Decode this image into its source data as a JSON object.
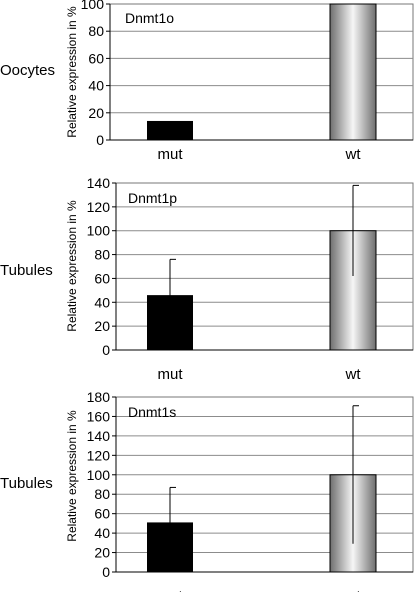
{
  "chart_data": [
    {
      "type": "bar",
      "row_label": "Oocytes",
      "title": "Dnmt1o",
      "ylabel": "Relative expression in %",
      "categories": [
        "mut",
        "wt"
      ],
      "values": [
        14,
        100
      ],
      "errors": [
        null,
        null
      ],
      "ylim": [
        0,
        100
      ],
      "yticks": [
        0,
        20,
        40,
        60,
        80,
        100
      ],
      "grid": true,
      "bar_styles": [
        "solid-black",
        "gray-gradient"
      ]
    },
    {
      "type": "bar",
      "row_label": "Tubules",
      "title": "Dnmt1p",
      "ylabel": "Relative expression in %",
      "categories": [
        "mut",
        "wt"
      ],
      "values": [
        46,
        100
      ],
      "errors": [
        30,
        38
      ],
      "ylim": [
        0,
        140
      ],
      "yticks": [
        0,
        20,
        40,
        60,
        80,
        100,
        120,
        140
      ],
      "grid": true,
      "bar_styles": [
        "solid-black",
        "gray-gradient"
      ]
    },
    {
      "type": "bar",
      "row_label": "Tubules",
      "title": "Dnmt1s",
      "ylabel": "Relative expression in %",
      "categories": [
        "mut",
        "wt"
      ],
      "values": [
        51,
        100
      ],
      "errors": [
        36,
        71
      ],
      "ylim": [
        0,
        180
      ],
      "yticks": [
        0,
        20,
        40,
        60,
        80,
        100,
        120,
        140,
        160,
        180
      ],
      "grid": true,
      "bar_styles": [
        "solid-black",
        "gray-gradient"
      ]
    }
  ],
  "colors": {
    "mut_bar": "#000000",
    "wt_gradient_edge": "#6e6e6e",
    "wt_gradient_center": "#f6f6f6",
    "grid": "#8c8c8c",
    "frame": "#777777",
    "axis": "#000000"
  }
}
